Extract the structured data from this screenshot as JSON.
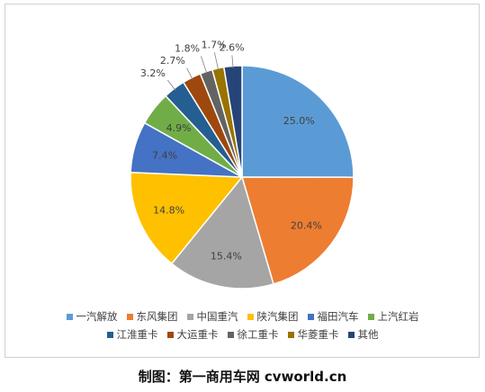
{
  "chart_data": {
    "type": "pie",
    "categories": [
      "一汽解放",
      "东风集团",
      "中国重汽",
      "陕汽集团",
      "福田汽车",
      "上汽红岩",
      "江淮重卡",
      "大运重卡",
      "徐工重卡",
      "华菱重卡",
      "其他"
    ],
    "values": [
      25.0,
      20.4,
      15.4,
      14.8,
      7.4,
      4.9,
      3.2,
      2.7,
      1.8,
      1.7,
      2.6
    ],
    "labels": [
      "25.0%",
      "20.4%",
      "15.4%",
      "14.8%",
      "7.4%",
      "4.9%",
      "3.2%",
      "2.7%",
      "1.8%",
      "1.7%",
      "2.6%"
    ],
    "colors": [
      "#5B9BD5",
      "#ED7D31",
      "#A5A5A5",
      "#FFC000",
      "#4472C4",
      "#70AD47",
      "#255E91",
      "#9E480E",
      "#636363",
      "#997300",
      "#264478"
    ],
    "legend_position": "bottom",
    "start_angle": "12 o'clock",
    "direction": "clockwise"
  },
  "caption": "制图：第一商用车网 cvworld.cn"
}
